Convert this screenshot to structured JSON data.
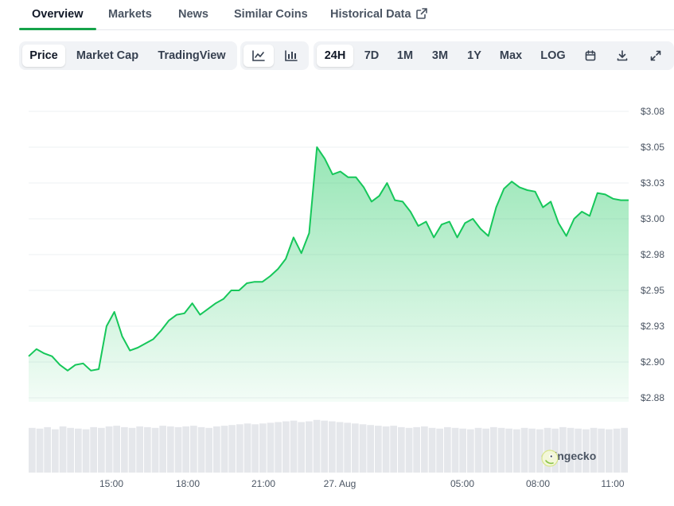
{
  "tabs": [
    {
      "label": "Overview",
      "active": true
    },
    {
      "label": "Markets"
    },
    {
      "label": "News"
    },
    {
      "label": "Similar Coins"
    },
    {
      "label": "Historical Data",
      "external": true
    }
  ],
  "toolbar": {
    "metric_tabs": [
      {
        "label": "Price",
        "active": true
      },
      {
        "label": "Market Cap"
      },
      {
        "label": "TradingView"
      }
    ],
    "chart_style": [
      {
        "icon": "line-chart-icon",
        "active": true
      },
      {
        "icon": "candlestick-chart-icon"
      }
    ],
    "ranges": [
      {
        "label": "24H",
        "active": true
      },
      {
        "label": "7D"
      },
      {
        "label": "1M"
      },
      {
        "label": "3M"
      },
      {
        "label": "1Y"
      },
      {
        "label": "Max"
      },
      {
        "label": "LOG"
      }
    ],
    "action_icons": [
      "calendar-icon",
      "download-icon",
      "fullscreen-icon"
    ]
  },
  "watermark": "coingecko",
  "colors": {
    "accent": "#16a34a",
    "line": "#16c75a",
    "volume": "#e5e7eb"
  },
  "chart_data": {
    "type": "area",
    "y_ticks": [
      "$3.08",
      "$3.05",
      "$3.03",
      "$3.00",
      "$2.98",
      "$2.95",
      "$2.93",
      "$2.90",
      "$2.88"
    ],
    "x_ticks": [
      "15:00",
      "18:00",
      "21:00",
      "27. Aug",
      "05:00",
      "08:00",
      "11:00"
    ],
    "ylim": [
      2.875,
      3.075
    ],
    "grid": true,
    "series": [
      {
        "values": [
          2.904,
          2.909,
          2.906,
          2.904,
          2.898,
          2.894,
          2.898,
          2.899,
          2.894,
          2.895,
          2.925,
          2.935,
          2.918,
          2.908,
          2.91,
          2.913,
          2.916,
          2.922,
          2.929,
          2.933,
          2.934,
          2.941,
          2.933,
          2.937,
          2.941,
          2.944,
          2.95,
          2.95,
          2.955,
          2.956,
          2.956,
          2.96,
          2.965,
          2.972,
          2.987,
          2.976,
          2.99,
          3.05,
          3.042,
          3.031,
          3.033,
          3.029,
          3.029,
          3.022,
          3.012,
          3.016,
          3.025,
          3.013,
          3.012,
          3.005,
          2.995,
          2.998,
          2.987,
          2.996,
          2.998,
          2.987,
          2.997,
          3.0,
          2.993,
          2.988,
          3.008,
          3.021,
          3.026,
          3.022,
          3.02,
          3.019,
          3.008,
          3.012,
          2.997,
          2.988,
          3.0,
          3.005,
          3.002,
          3.018,
          3.017,
          3.014,
          3.013,
          3.013
        ]
      }
    ],
    "volume": [
      62,
      61,
      63,
      60,
      64,
      62,
      61,
      60,
      63,
      62,
      64,
      65,
      63,
      62,
      64,
      63,
      62,
      65,
      64,
      63,
      64,
      65,
      63,
      62,
      64,
      65,
      66,
      67,
      68,
      67,
      68,
      69,
      70,
      71,
      72,
      70,
      71,
      73,
      72,
      71,
      70,
      69,
      68,
      67,
      66,
      65,
      64,
      65,
      63,
      62,
      63,
      64,
      62,
      61,
      63,
      62,
      61,
      60,
      62,
      61,
      63,
      62,
      61,
      60,
      62,
      61,
      60,
      62,
      61,
      63,
      62,
      61,
      60,
      62,
      61,
      60,
      61,
      62
    ]
  }
}
